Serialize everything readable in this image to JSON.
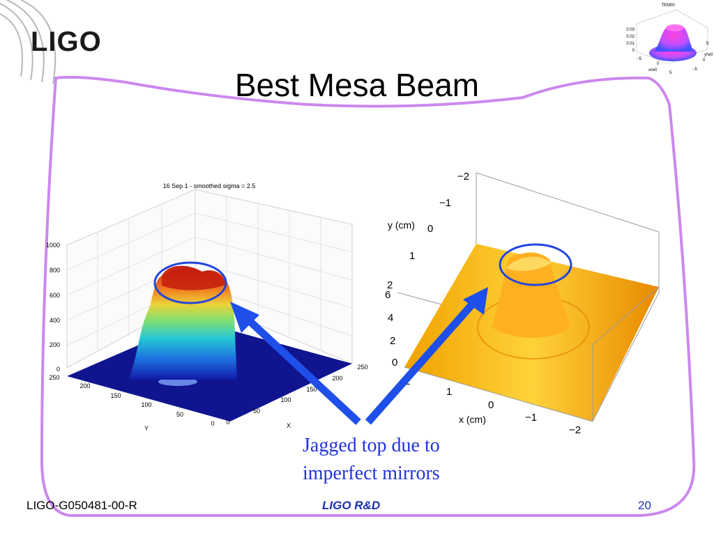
{
  "slide": {
    "logo": "LIGO",
    "title": "Best Mesa Beam",
    "caption": "Jagged top due to imperfect mirrors",
    "footer_left": "LIGO-G050481-00-R",
    "footer_center": "LIGO R&D",
    "page_number": "20"
  },
  "colors": {
    "border": "#cc88ee",
    "arrow": "#1f4fe8",
    "caption": "#2233dd",
    "footer_accent": "#1a2fb0",
    "left_floor": "#10158f",
    "right_surface": "#ffa313"
  },
  "left_plot": {
    "title": "16 Sep 1 - smoothed sigma = 2.5",
    "z_ticks": [
      "0",
      "200",
      "400",
      "600",
      "800",
      "1000"
    ],
    "x_ticks": [
      "0",
      "50",
      "100",
      "150",
      "200",
      "250"
    ],
    "y_ticks": [
      "0",
      "50",
      "100",
      "150",
      "200",
      "250"
    ],
    "x_label": "X",
    "y_label": "Y"
  },
  "right_plot": {
    "y_label": "y (cm)",
    "x_label": "x (cm)",
    "y_axis_ticks": [
      "−2",
      "−1",
      "0",
      "1",
      "2"
    ],
    "z_ticks": [
      "0",
      "2",
      "4",
      "6"
    ],
    "x_ticks": [
      "2",
      "1",
      "0",
      "−1",
      "−2"
    ]
  },
  "inset_plot": {
    "title": "TEM00",
    "z_ticks": [
      "0",
      "0.01",
      "0.02",
      "0.03"
    ],
    "x_ticks": [
      "−5",
      "0",
      "5"
    ],
    "y_ticks": [
      "−5",
      "0",
      "5"
    ],
    "x_label": "x/w0",
    "y_label": "y/w0"
  }
}
